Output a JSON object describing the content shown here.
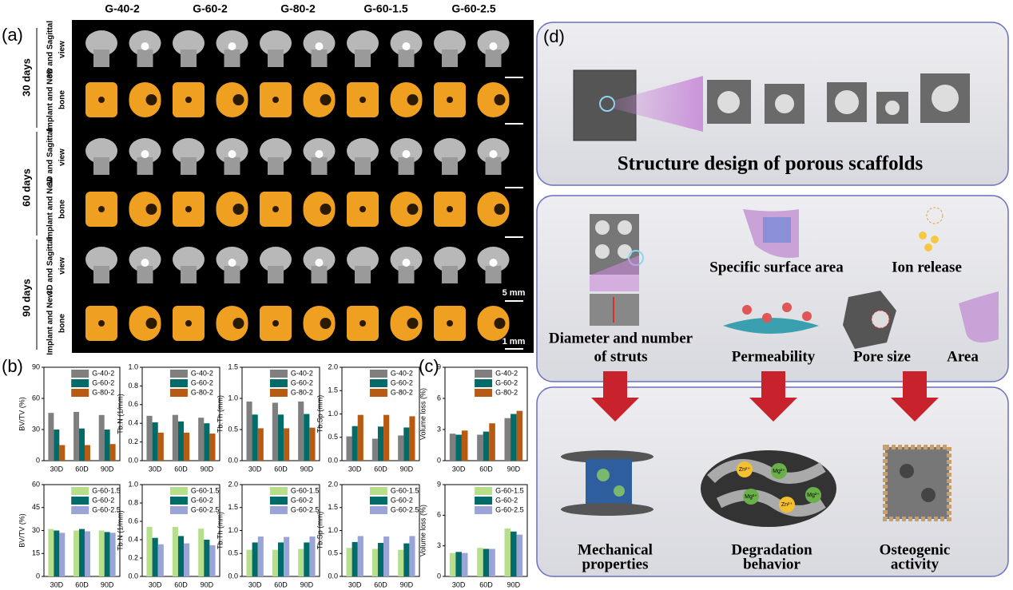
{
  "panel_labels": [
    "(a)",
    "(b)",
    "(c)",
    "(d)"
  ],
  "panel_a": {
    "columns": [
      "G-40-2",
      "G-60-2",
      "G-80-2",
      "G-60-1.5",
      "G-60-2.5"
    ],
    "times": [
      "30 days",
      "60 days",
      "90 days"
    ],
    "row_labels": [
      [
        "3D and Sagittal",
        "view"
      ],
      [
        "Implant and New",
        "bone"
      ]
    ],
    "scale_bars": [
      "5 mm",
      "1 mm"
    ]
  },
  "chart_data": [
    {
      "type": "bar",
      "ylabel": "BV/TV (%)",
      "categories": [
        "30D",
        "60D",
        "90D"
      ],
      "ylim": [
        0,
        90
      ],
      "yticks": [
        0,
        30,
        60,
        90
      ],
      "series": [
        {
          "name": "G-40-2",
          "color": "#7f7f7f",
          "values": [
            46,
            47,
            44
          ]
        },
        {
          "name": "G-60-2",
          "color": "#006b68",
          "values": [
            30,
            31,
            30
          ]
        },
        {
          "name": "G-80-2",
          "color": "#b85a12",
          "values": [
            15,
            15,
            16
          ]
        }
      ]
    },
    {
      "type": "bar",
      "ylabel": "Tb.N (1/mm)",
      "categories": [
        "30D",
        "60D",
        "90D"
      ],
      "ylim": [
        0,
        1
      ],
      "yticks": [
        {
          "value": 0,
          "label": "0.0"
        },
        0.2,
        0.4,
        0.6,
        0.8,
        {
          "value": 1,
          "label": "1.0"
        }
      ],
      "series": [
        {
          "name": "G-40-2",
          "color": "#7f7f7f",
          "values": [
            0.48,
            0.49,
            0.46
          ]
        },
        {
          "name": "G-60-2",
          "color": "#006b68",
          "values": [
            0.41,
            0.42,
            0.4
          ]
        },
        {
          "name": "G-80-2",
          "color": "#b85a12",
          "values": [
            0.3,
            0.3,
            0.29
          ]
        }
      ]
    },
    {
      "type": "bar",
      "ylabel": "Tb.Th (mm)",
      "categories": [
        "30D",
        "60D",
        "90D"
      ],
      "ylim": [
        0,
        1.5
      ],
      "yticks": [
        {
          "value": 0,
          "label": "0.0"
        },
        0.5,
        {
          "value": 1,
          "label": "1.0"
        },
        1.5
      ],
      "series": [
        {
          "name": "G-40-2",
          "color": "#7f7f7f",
          "values": [
            0.95,
            0.93,
            0.95
          ]
        },
        {
          "name": "G-60-2",
          "color": "#006b68",
          "values": [
            0.74,
            0.74,
            0.75
          ]
        },
        {
          "name": "G-80-2",
          "color": "#b85a12",
          "values": [
            0.52,
            0.52,
            0.53
          ]
        }
      ]
    },
    {
      "type": "bar",
      "ylabel": "Tb.Sp (mm)",
      "categories": [
        "30D",
        "60D",
        "90D"
      ],
      "ylim": [
        0,
        2
      ],
      "yticks": [
        {
          "value": 0,
          "label": "0.0"
        },
        0.5,
        {
          "value": 1,
          "label": "1.0"
        },
        1.5,
        {
          "value": 2,
          "label": "2.0"
        }
      ],
      "series": [
        {
          "name": "G-40-2",
          "color": "#7f7f7f",
          "values": [
            0.52,
            0.47,
            0.54
          ]
        },
        {
          "name": "G-60-2",
          "color": "#006b68",
          "values": [
            0.74,
            0.73,
            0.71
          ]
        },
        {
          "name": "G-80-2",
          "color": "#b85a12",
          "values": [
            0.98,
            0.98,
            0.95
          ]
        }
      ]
    },
    {
      "type": "bar",
      "ylabel": "Volume loss (%)",
      "categories": [
        "30D",
        "60D",
        "90D"
      ],
      "ylim": [
        0,
        9
      ],
      "yticks": [
        0,
        3,
        6,
        9
      ],
      "series": [
        {
          "name": "G-40-2",
          "color": "#7f7f7f",
          "values": [
            2.6,
            2.5,
            4.1
          ]
        },
        {
          "name": "G-60-2",
          "color": "#006b68",
          "values": [
            2.5,
            2.8,
            4.5
          ]
        },
        {
          "name": "G-80-2",
          "color": "#b85a12",
          "values": [
            2.9,
            3.6,
            4.8
          ]
        }
      ]
    },
    {
      "type": "bar",
      "ylabel": "BV/TV (%)",
      "categories": [
        "30D",
        "60D",
        "90D"
      ],
      "ylim": [
        0,
        60
      ],
      "yticks": [
        0,
        15,
        30,
        45,
        60
      ],
      "series": [
        {
          "name": "G-60-1.5",
          "color": "#b7df8b",
          "values": [
            31,
            30,
            30
          ]
        },
        {
          "name": "G-60-2",
          "color": "#006b68",
          "values": [
            30,
            31,
            29
          ]
        },
        {
          "name": "G-60-2.5",
          "color": "#9aa4d6",
          "values": [
            28.5,
            29.5,
            28.5
          ]
        }
      ]
    },
    {
      "type": "bar",
      "ylabel": "Tb.N (1/mm)",
      "categories": [
        "30D",
        "60D",
        "90D"
      ],
      "ylim": [
        0,
        1
      ],
      "yticks": [
        {
          "value": 0,
          "label": "0.0"
        },
        0.2,
        0.4,
        0.6,
        0.8,
        {
          "value": 1,
          "label": "1.0"
        }
      ],
      "series": [
        {
          "name": "G-60-1.5",
          "color": "#b7df8b",
          "values": [
            0.54,
            0.54,
            0.52
          ]
        },
        {
          "name": "G-60-2",
          "color": "#006b68",
          "values": [
            0.42,
            0.44,
            0.4
          ]
        },
        {
          "name": "G-60-2.5",
          "color": "#9aa4d6",
          "values": [
            0.35,
            0.36,
            0.34
          ]
        }
      ]
    },
    {
      "type": "bar",
      "ylabel": "Tb.Th (mm)",
      "categories": [
        "30D",
        "60D",
        "90D"
      ],
      "ylim": [
        0,
        2
      ],
      "yticks": [
        {
          "value": 0,
          "label": "0.0"
        },
        0.5,
        {
          "value": 1,
          "label": "1.0"
        },
        1.5,
        {
          "value": 2,
          "label": "2.0"
        }
      ],
      "series": [
        {
          "name": "G-60-1.5",
          "color": "#b7df8b",
          "values": [
            0.58,
            0.58,
            0.6
          ]
        },
        {
          "name": "G-60-2",
          "color": "#006b68",
          "values": [
            0.74,
            0.74,
            0.74
          ]
        },
        {
          "name": "G-60-2.5",
          "color": "#9aa4d6",
          "values": [
            0.87,
            0.86,
            0.87
          ]
        }
      ]
    },
    {
      "type": "bar",
      "ylabel": "Tb.Sp (mm)",
      "categories": [
        "30D",
        "60D",
        "90D"
      ],
      "ylim": [
        0,
        2
      ],
      "yticks": [
        {
          "value": 0,
          "label": "0.0"
        },
        0.5,
        {
          "value": 1,
          "label": "1.0"
        },
        1.5,
        {
          "value": 2,
          "label": "2.0"
        }
      ],
      "series": [
        {
          "name": "G-60-1.5",
          "color": "#b7df8b",
          "values": [
            0.62,
            0.6,
            0.58
          ]
        },
        {
          "name": "G-60-2",
          "color": "#006b68",
          "values": [
            0.75,
            0.73,
            0.72
          ]
        },
        {
          "name": "G-60-2.5",
          "color": "#9aa4d6",
          "values": [
            0.88,
            0.87,
            0.88
          ]
        }
      ]
    },
    {
      "type": "bar",
      "ylabel": "Volume loss (%)",
      "categories": [
        "30D",
        "60D",
        "90D"
      ],
      "ylim": [
        0,
        9
      ],
      "yticks": [
        0,
        3,
        6,
        9
      ],
      "series": [
        {
          "name": "G-60-1.5",
          "color": "#b7df8b",
          "values": [
            2.3,
            2.8,
            4.7
          ]
        },
        {
          "name": "G-60-2",
          "color": "#006b68",
          "values": [
            2.4,
            2.7,
            4.4
          ]
        },
        {
          "name": "G-60-2.5",
          "color": "#9aa4d6",
          "values": [
            2.3,
            2.7,
            4.1
          ]
        }
      ]
    }
  ],
  "panel_d": {
    "title": "Structure design of porous scaffolds",
    "features": [
      "Specific surface area",
      "Ion release",
      "Permeability",
      "Pore size",
      "Area"
    ],
    "struts": [
      "Diameter and number",
      "of struts"
    ],
    "outcomes": [
      [
        "Mechanical",
        "properties"
      ],
      [
        "Degradation",
        "behavior"
      ],
      [
        "Osteogenic",
        "activity"
      ]
    ],
    "ions": [
      "Zn²⁺",
      "Mg²⁺",
      "Mg²⁺",
      "Zn²⁺",
      "Mg²⁺"
    ]
  }
}
